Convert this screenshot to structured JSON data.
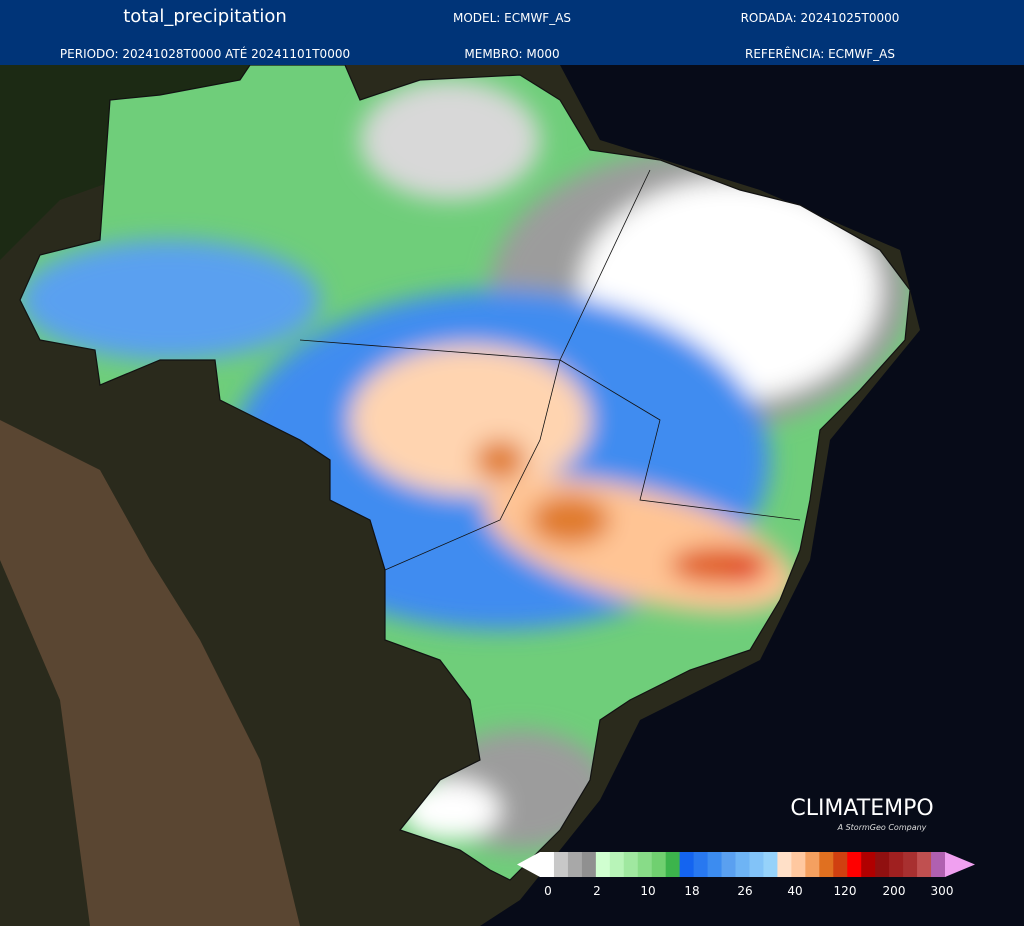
{
  "header": {
    "title": "total_precipitation",
    "model": "MODEL: ECMWF_AS",
    "run": "RODADA: 20241025T0000",
    "period": "PERIODO: 20241028T0000 ATÉ 20241101T0000",
    "member": "MEMBRO: M000",
    "reference": "REFERÊNCIA: ECMWF_AS"
  },
  "logo": {
    "name": "CLIMATEMPO",
    "tagline": "A StormGeo Company"
  },
  "colorbar": {
    "ticks": [
      0,
      2,
      10,
      18,
      26,
      40,
      120,
      200,
      300
    ]
  }
}
